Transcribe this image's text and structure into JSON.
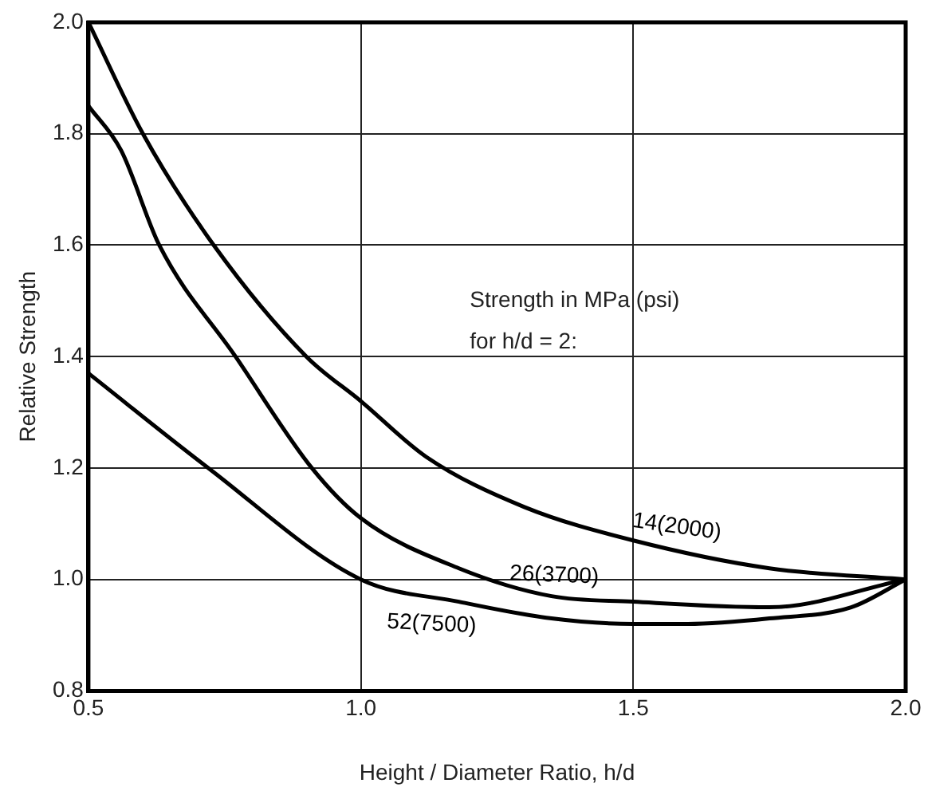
{
  "chart_data": {
    "type": "line",
    "xlabel": "Height / Diameter Ratio, h/d",
    "ylabel": "Relative Strength",
    "annotations": [
      "Strength in MPa (psi)",
      "for h/d = 2:"
    ],
    "xlim": [
      0.5,
      2.0
    ],
    "ylim": [
      0.8,
      2.0
    ],
    "xticks": [
      0.5,
      {
        "value": 1,
        "label": "1.0"
      },
      1.5,
      {
        "value": 2,
        "label": "2.0"
      }
    ],
    "yticks": [
      0.8,
      {
        "value": 1,
        "label": "1.0"
      },
      1.2,
      1.4,
      1.6,
      1.8,
      {
        "value": 2,
        "label": "2.0"
      }
    ],
    "grid": true,
    "marker": "none",
    "line_style": "solid",
    "series": [
      {
        "name": "14(2000)",
        "color": "#000000",
        "x": [
          0.5,
          0.6,
          0.73,
          0.9,
          1.0,
          1.12,
          1.3,
          1.5,
          1.75,
          2.0
        ],
        "values": [
          2.0,
          1.8,
          1.6,
          1.4,
          1.32,
          1.22,
          1.13,
          1.07,
          1.02,
          1.0
        ]
      },
      {
        "name": "26(3700)",
        "color": "#000000",
        "x": [
          0.5,
          0.56,
          0.63,
          0.77,
          0.91,
          1.0,
          1.18,
          1.35,
          1.5,
          1.75,
          2.0
        ],
        "values": [
          1.85,
          1.77,
          1.6,
          1.4,
          1.2,
          1.11,
          1.02,
          0.97,
          0.96,
          0.95,
          1.0
        ]
      },
      {
        "name": "52(7500)",
        "color": "#000000",
        "x": [
          0.5,
          0.72,
          1.0,
          1.18,
          1.35,
          1.5,
          1.6,
          1.75,
          1.9,
          2.0
        ],
        "values": [
          1.37,
          1.2,
          1.0,
          0.96,
          0.93,
          0.92,
          0.92,
          0.93,
          0.95,
          1.0
        ]
      }
    ]
  }
}
